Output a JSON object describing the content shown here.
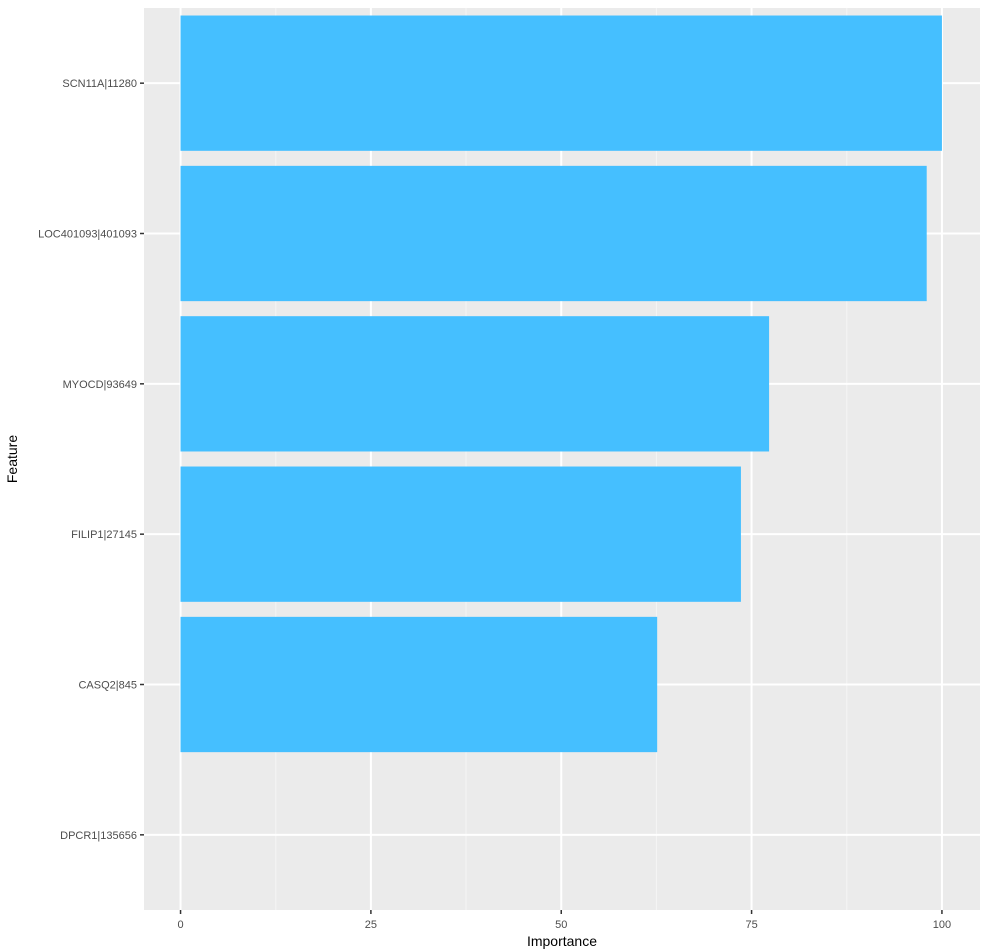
{
  "chart_data": {
    "type": "bar",
    "orientation": "horizontal",
    "title": "",
    "xlabel": "Importance",
    "ylabel": "Feature",
    "categories": [
      "SCN11A|11280",
      "LOC401093|401093",
      "MYOCD|93649",
      "FILIP1|27145",
      "CASQ2|845",
      "DPCR1|135656"
    ],
    "values": [
      100,
      98,
      77.3,
      73.6,
      62.6,
      0
    ],
    "xlim": [
      -4.8,
      105.0
    ],
    "xticks": [
      0,
      25,
      50,
      75,
      100
    ],
    "xtick_labels": [
      "0",
      "25",
      "50",
      "75",
      "100"
    ],
    "grid": true,
    "legend": "none",
    "colors": {
      "bar": "#45BFFF",
      "panel": "#EBEBEB",
      "grid_major": "#FFFFFF",
      "grid_minor": "#F5F5F5",
      "tick_text": "#4D4D4D",
      "title_text": "#000000"
    }
  }
}
